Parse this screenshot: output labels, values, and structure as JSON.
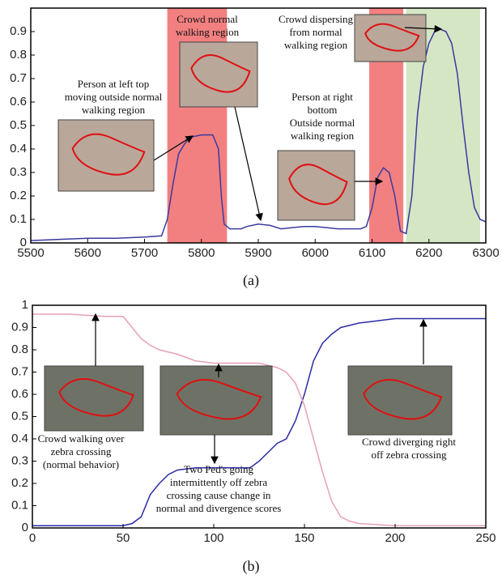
{
  "chart_data": [
    {
      "type": "line",
      "caption": "(a)",
      "x": [
        5500,
        5550,
        5600,
        5650,
        5700,
        5730,
        5740,
        5750,
        5760,
        5770,
        5780,
        5800,
        5820,
        5830,
        5835,
        5840,
        5850,
        5870,
        5880,
        5900,
        5920,
        5940,
        5960,
        5980,
        6000,
        6020,
        6040,
        6060,
        6080,
        6090,
        6100,
        6110,
        6120,
        6130,
        6140,
        6150,
        6160,
        6170,
        6180,
        6190,
        6200,
        6210,
        6220,
        6230,
        6240,
        6250,
        6260,
        6270,
        6280,
        6290,
        6300
      ],
      "series": [
        {
          "color": "#3a3aa0",
          "values": [
            0.01,
            0.015,
            0.02,
            0.02,
            0.025,
            0.03,
            0.1,
            0.25,
            0.38,
            0.42,
            0.45,
            0.46,
            0.46,
            0.4,
            0.2,
            0.08,
            0.06,
            0.06,
            0.07,
            0.08,
            0.075,
            0.06,
            0.065,
            0.07,
            0.07,
            0.065,
            0.06,
            0.06,
            0.06,
            0.07,
            0.15,
            0.28,
            0.32,
            0.3,
            0.2,
            0.05,
            0.04,
            0.2,
            0.55,
            0.75,
            0.85,
            0.9,
            0.91,
            0.9,
            0.85,
            0.72,
            0.5,
            0.3,
            0.15,
            0.1,
            0.09
          ]
        }
      ],
      "regions": [
        {
          "start": 5740,
          "end": 5845,
          "color": "#f28080"
        },
        {
          "start": 6095,
          "end": 6155,
          "color": "#f28080"
        },
        {
          "start": 6160,
          "end": 6290,
          "color": "#d4e6c4"
        }
      ],
      "xlim": [
        5500,
        6300
      ],
      "xticks": [
        5500,
        5600,
        5700,
        5800,
        5900,
        6000,
        6100,
        6200,
        6300
      ],
      "ylim": [
        0,
        1
      ],
      "yticks": [
        0,
        0.1,
        0.2,
        0.3,
        0.4,
        0.5,
        0.6,
        0.7,
        0.8,
        0.9
      ],
      "annotations": [
        {
          "lines": [
            "Person at left top",
            "moving outside normal",
            "walking region"
          ]
        },
        {
          "lines": [
            "Crowd normal",
            "walking region"
          ]
        },
        {
          "lines": [
            "Crowd dispersing",
            "from normal",
            "walking region"
          ]
        },
        {
          "lines": [
            "Person at right",
            "bottom",
            "Outside normal",
            "walking region"
          ]
        }
      ]
    },
    {
      "type": "line",
      "caption": "(b)",
      "x": [
        0,
        10,
        20,
        30,
        40,
        50,
        55,
        60,
        65,
        70,
        75,
        80,
        90,
        100,
        110,
        120,
        125,
        130,
        135,
        140,
        145,
        150,
        155,
        160,
        165,
        170,
        175,
        180,
        190,
        200,
        210,
        220,
        250
      ],
      "series": [
        {
          "color": "#2c2ca8",
          "values": [
            0.01,
            0.01,
            0.01,
            0.01,
            0.01,
            0.01,
            0.02,
            0.05,
            0.15,
            0.2,
            0.24,
            0.26,
            0.27,
            0.27,
            0.27,
            0.27,
            0.3,
            0.34,
            0.38,
            0.4,
            0.48,
            0.6,
            0.75,
            0.83,
            0.87,
            0.9,
            0.91,
            0.92,
            0.93,
            0.94,
            0.94,
            0.94,
            0.94
          ]
        },
        {
          "color": "#e8a0b8",
          "values": [
            0.96,
            0.96,
            0.96,
            0.955,
            0.95,
            0.95,
            0.9,
            0.85,
            0.82,
            0.8,
            0.79,
            0.78,
            0.75,
            0.74,
            0.74,
            0.74,
            0.74,
            0.73,
            0.72,
            0.7,
            0.65,
            0.55,
            0.4,
            0.25,
            0.12,
            0.05,
            0.03,
            0.02,
            0.015,
            0.01,
            0.01,
            0.01,
            0.01
          ]
        }
      ],
      "xlim": [
        0,
        250
      ],
      "xticks": [
        0,
        50,
        100,
        150,
        200,
        250
      ],
      "ylim": [
        0,
        1
      ],
      "yticks": [
        0,
        0.1,
        0.2,
        0.3,
        0.4,
        0.5,
        0.6,
        0.7,
        0.8,
        0.9,
        1
      ],
      "annotations": [
        {
          "lines": [
            "Crowd walking over",
            "zebra crossing",
            "(normal behavior)"
          ]
        },
        {
          "lines": [
            "Two Ped's going",
            "intermittently off zebra",
            "crossing cause change in",
            "normal and divergence scores"
          ]
        },
        {
          "lines": [
            "Crowd diverging right",
            "off zebra crossing"
          ]
        }
      ]
    }
  ]
}
